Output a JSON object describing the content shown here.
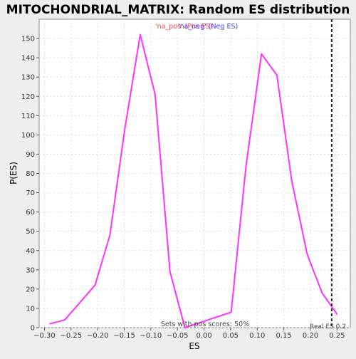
{
  "chart_data": {
    "type": "line",
    "title": "MITOCHONDRIAL_MATRIX: Random ES distribution",
    "xlabel": "ES",
    "ylabel": "P(ES)",
    "xlim": [
      -0.31,
      0.275
    ],
    "ylim": [
      0,
      160
    ],
    "x_ticks": [
      -0.3,
      -0.25,
      -0.2,
      -0.15,
      -0.1,
      -0.05,
      0.0,
      0.05,
      0.1,
      0.15,
      0.2,
      0.25
    ],
    "x_tick_labels": [
      "−0.30",
      "−0.25",
      "−0.20",
      "−0.15",
      "−0.10",
      "−0.05",
      "0.00",
      "0.05",
      "0.10",
      "0.15",
      "0.20",
      "0.25"
    ],
    "y_ticks": [
      0,
      10,
      20,
      30,
      40,
      50,
      60,
      70,
      80,
      90,
      100,
      110,
      120,
      130,
      140,
      150
    ],
    "grid": true,
    "series": [
      {
        "color": "#ff33ff",
        "points": [
          [
            -0.29,
            2
          ],
          [
            -0.262,
            4
          ],
          [
            -0.205,
            22
          ],
          [
            -0.177,
            48
          ],
          [
            -0.149,
            103
          ],
          [
            -0.12,
            152
          ],
          [
            -0.092,
            121
          ],
          [
            -0.064,
            29
          ],
          [
            -0.036,
            0
          ],
          [
            0.051,
            8
          ],
          [
            0.079,
            84
          ],
          [
            0.108,
            142
          ],
          [
            0.137,
            131
          ],
          [
            0.165,
            76
          ],
          [
            0.194,
            38
          ],
          [
            0.222,
            18
          ],
          [
            0.25,
            7
          ]
        ]
      }
    ],
    "real_es": 0.24,
    "legend": {
      "na_label": "'na_pos' (Pos ES)",
      "neg_label": "'na_neg' (Neg ES)",
      "na_color": "#ff4444",
      "neg_color": "#4444ff"
    },
    "annotations": {
      "sets_label": "Sets with pos scores: 50%",
      "real_es_label": "Real ES 0.2"
    }
  }
}
